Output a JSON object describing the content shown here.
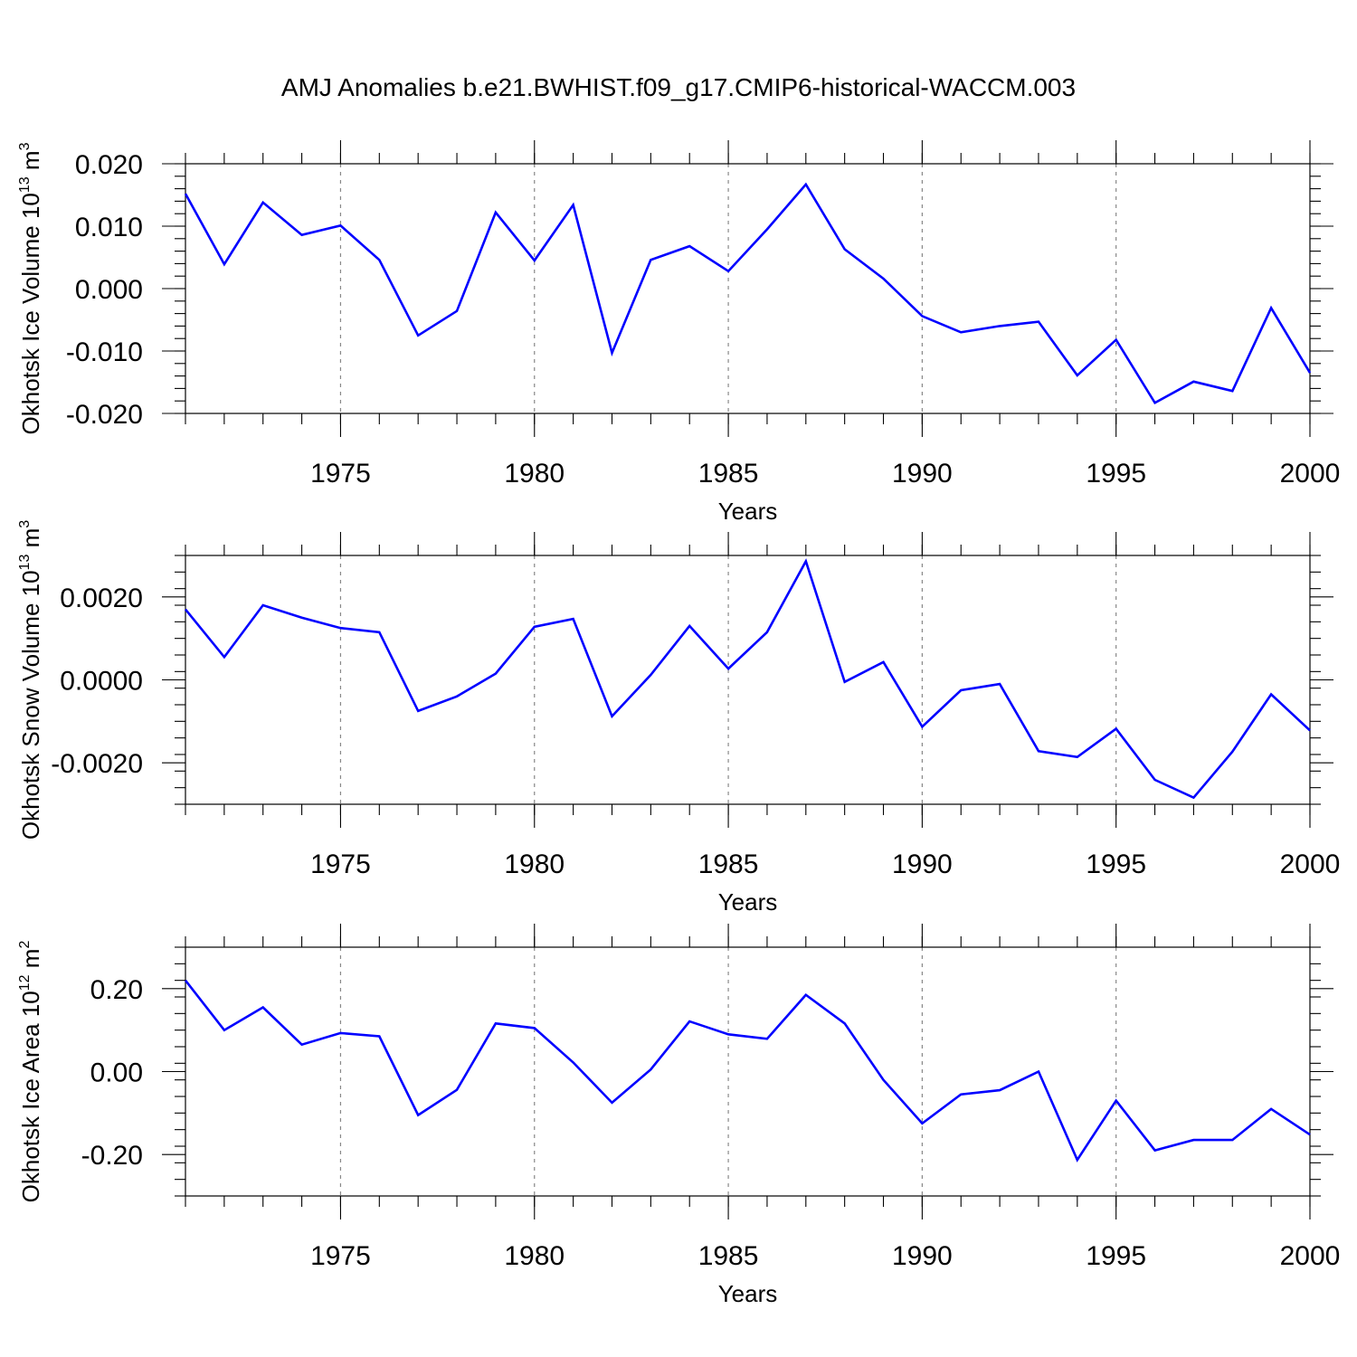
{
  "title": "AMJ Anomalies b.e21.BWHIST.f09_g17.CMIP6-historical-WACCM.003",
  "line_color": "#0000ff",
  "chart_data": [
    {
      "type": "line",
      "ylabel": "Okhotsk Ice Volume 10",
      "ylabel_exp": "13",
      "ylabel_unit": " m",
      "ylabel_unit_exp": "3",
      "xlabel": "Years",
      "xlim": [
        1971,
        2000
      ],
      "ylim": [
        -0.02,
        0.02
      ],
      "xticks": [
        "1975",
        "1980",
        "1985",
        "1990",
        "1995",
        "2000"
      ],
      "yticks": [
        "0.020",
        "0.010",
        "0.000",
        "-0.010",
        "-0.020"
      ],
      "grid": "dashed vertical at major x ticks",
      "x": [
        1971,
        1972,
        1973,
        1974,
        1975,
        1976,
        1977,
        1978,
        1979,
        1980,
        1981,
        1982,
        1983,
        1984,
        1985,
        1986,
        1987,
        1988,
        1989,
        1990,
        1991,
        1992,
        1993,
        1994,
        1995,
        1996,
        1997,
        1998,
        1999,
        2000
      ],
      "values": [
        0.0152,
        0.0039,
        0.0138,
        0.0086,
        0.0101,
        0.0046,
        -0.0075,
        -0.0036,
        0.0122,
        0.0045,
        0.0134,
        -0.0103,
        0.0046,
        0.0068,
        0.0028,
        0.0095,
        0.0167,
        0.0063,
        0.0016,
        -0.0044,
        -0.007,
        -0.006,
        -0.0053,
        -0.0139,
        -0.0082,
        -0.0183,
        -0.0149,
        -0.0164,
        -0.0031,
        -0.0135
      ]
    },
    {
      "type": "line",
      "ylabel": "Okhotsk Snow Volume 10",
      "ylabel_exp": "13",
      "ylabel_unit": " m",
      "ylabel_unit_exp": "3",
      "xlabel": "Years",
      "xlim": [
        1971,
        2000
      ],
      "ylim": [
        -0.003,
        0.003
      ],
      "xticks": [
        "1975",
        "1980",
        "1985",
        "1990",
        "1995",
        "2000"
      ],
      "yticks": [
        "0.0020",
        "0.0000",
        "-0.0020"
      ],
      "grid": "dashed vertical at major x ticks",
      "x": [
        1971,
        1972,
        1973,
        1974,
        1975,
        1976,
        1977,
        1978,
        1979,
        1980,
        1981,
        1982,
        1983,
        1984,
        1985,
        1986,
        1987,
        1988,
        1989,
        1990,
        1991,
        1992,
        1993,
        1994,
        1995,
        1996,
        1997,
        1998,
        1999,
        2000
      ],
      "values": [
        0.0017,
        0.00055,
        0.0018,
        0.0015,
        0.00125,
        0.00115,
        -0.00075,
        -0.0004,
        0.00015,
        0.00128,
        0.00147,
        -0.00088,
        0.00012,
        0.0013,
        0.00027,
        0.00115,
        0.00286,
        -5e-05,
        0.00043,
        -0.00113,
        -0.00025,
        -0.0001,
        -0.00172,
        -0.00186,
        -0.00118,
        -0.00241,
        -0.00284,
        -0.00173,
        -0.00035,
        -0.00122
      ]
    },
    {
      "type": "line",
      "ylabel": "Okhotsk Ice Area 10",
      "ylabel_exp": "12",
      "ylabel_unit": " m",
      "ylabel_unit_exp": "2",
      "xlabel": "Years",
      "xlim": [
        1971,
        2000
      ],
      "ylim": [
        -0.3,
        0.3
      ],
      "xticks": [
        "1975",
        "1980",
        "1985",
        "1990",
        "1995",
        "2000"
      ],
      "yticks": [
        "0.20",
        "0.00",
        "-0.20"
      ],
      "grid": "dashed vertical at major x ticks",
      "x": [
        1971,
        1972,
        1973,
        1974,
        1975,
        1976,
        1977,
        1978,
        1979,
        1980,
        1981,
        1982,
        1983,
        1984,
        1985,
        1986,
        1987,
        1988,
        1989,
        1990,
        1991,
        1992,
        1993,
        1994,
        1995,
        1996,
        1997,
        1998,
        1999,
        2000
      ],
      "values": [
        0.22,
        0.1,
        0.155,
        0.065,
        0.093,
        0.085,
        -0.105,
        -0.044,
        0.116,
        0.105,
        0.022,
        -0.075,
        0.005,
        0.121,
        0.09,
        0.079,
        0.185,
        0.116,
        -0.02,
        -0.125,
        -0.055,
        -0.045,
        0.0,
        -0.213,
        -0.07,
        -0.19,
        -0.165,
        -0.165,
        -0.09,
        -0.152
      ]
    }
  ]
}
